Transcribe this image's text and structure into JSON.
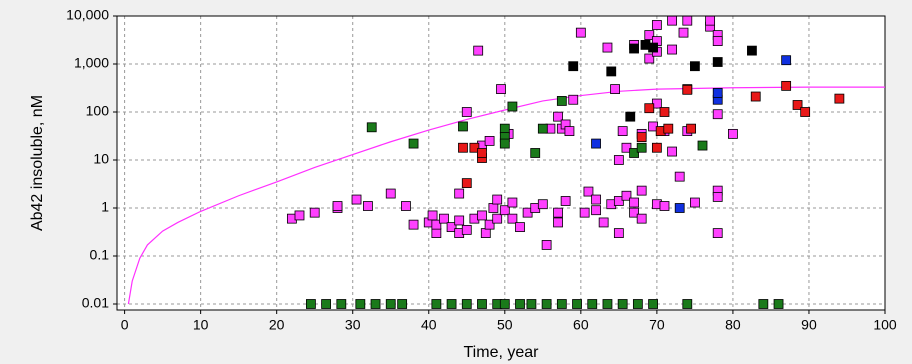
{
  "chart_data": {
    "type": "scatter",
    "x_label": "Time, year",
    "y_label": "Ab42 insoluble, nM",
    "xlim": [
      -1,
      100
    ],
    "xticks": [
      0,
      10,
      20,
      30,
      40,
      50,
      60,
      70,
      80,
      90,
      100
    ],
    "ylim": [
      0.0075,
      10000
    ],
    "ylog": true,
    "yticks": [
      0.01,
      0.1,
      1,
      10,
      100,
      {
        "value": 1000,
        "label": "1,000"
      },
      {
        "value": 10000,
        "label": "10,000"
      }
    ],
    "grid": true,
    "series": [
      {
        "type": "line",
        "color": "#ff30ff",
        "x": [
          0.5,
          1,
          2,
          3,
          5,
          7,
          10,
          15,
          20,
          25,
          30,
          35,
          40,
          45,
          50,
          55,
          60,
          65,
          70,
          80,
          90,
          100
        ],
        "values": [
          0.01,
          0.03,
          0.09,
          0.17,
          0.33,
          0.5,
          0.85,
          1.8,
          3.5,
          7,
          13,
          24,
          42,
          70,
          110,
          170,
          220,
          270,
          300,
          320,
          330,
          330
        ]
      },
      {
        "type": "scatter",
        "color": "#ff40ff",
        "x": [
          22,
          23,
          25,
          28,
          28,
          30.5,
          32,
          35,
          37,
          38,
          40,
          40.5,
          41,
          41,
          42,
          43,
          44,
          44,
          44,
          45,
          45,
          46,
          46.5,
          47,
          47,
          47.5,
          48,
          48,
          48.5,
          49,
          49,
          49.5,
          50,
          50.5,
          51,
          51,
          52,
          53,
          54,
          55,
          55.5,
          56,
          57,
          57,
          57,
          57.5,
          58,
          58,
          58.5,
          59,
          60,
          60.5,
          61,
          62,
          62,
          63,
          63.5,
          64,
          64.5,
          65,
          65,
          65,
          65.5,
          66,
          66,
          67,
          67,
          67,
          68,
          68,
          68,
          69,
          69,
          69.5,
          70,
          70,
          70,
          70,
          70,
          71,
          71,
          72,
          72,
          72,
          73,
          73.5,
          74,
          74,
          74,
          75,
          77,
          77,
          78,
          78,
          78,
          78,
          78,
          78,
          80
        ],
        "values": [
          0.6,
          0.7,
          0.8,
          1.0,
          1.1,
          1.5,
          1.1,
          2,
          1.1,
          0.45,
          0.5,
          0.7,
          0.3,
          0.45,
          0.6,
          0.4,
          0.3,
          0.55,
          2,
          100,
          0.35,
          0.6,
          1900,
          20,
          0.7,
          0.3,
          25,
          0.45,
          1,
          0.6,
          1.5,
          300,
          0.9,
          35,
          0.6,
          1.3,
          0.4,
          0.8,
          1,
          1.2,
          0.17,
          45,
          80,
          0.8,
          0.5,
          45,
          55,
          1.4,
          40,
          180,
          4500,
          0.8,
          2.2,
          1.5,
          0.9,
          0.5,
          2200,
          1.2,
          300,
          10,
          1.4,
          0.3,
          40,
          18,
          1.8,
          2500,
          1.3,
          0.8,
          35,
          2.3,
          0.6,
          1300,
          4000,
          50,
          6500,
          3000,
          1800,
          150,
          1.2,
          1.1,
          40,
          8000,
          2000,
          15,
          4.5,
          4500,
          8000,
          40,
          300,
          1.3,
          6000,
          8000,
          4000,
          3000,
          90,
          2.3,
          1.7,
          0.3,
          35
        ]
      },
      {
        "type": "scatter",
        "color": "#1a7a1a",
        "x": [
          24.5,
          26.5,
          28.5,
          31,
          33,
          35,
          36.5,
          41,
          43,
          45,
          47,
          49,
          50,
          52,
          53.5,
          55.5,
          57.5,
          59.5,
          61.5,
          63.5,
          65.5,
          67.5,
          69.5,
          74,
          84,
          86,
          32.5,
          38,
          44.5,
          50,
          50,
          50,
          51,
          54,
          55,
          57.5,
          67,
          68,
          76
        ],
        "values": [
          0.01,
          0.01,
          0.01,
          0.01,
          0.01,
          0.01,
          0.01,
          0.01,
          0.01,
          0.01,
          0.01,
          0.01,
          0.01,
          0.01,
          0.01,
          0.01,
          0.01,
          0.01,
          0.01,
          0.01,
          0.01,
          0.01,
          0.01,
          0.01,
          0.01,
          0.01,
          48,
          22,
          50,
          45,
          30,
          22,
          130,
          14,
          45,
          170,
          14,
          18,
          20
        ]
      },
      {
        "type": "scatter",
        "color": "#e81818",
        "x": [
          44.5,
          45,
          46,
          47,
          47,
          68,
          69,
          70,
          70.5,
          71,
          71.5,
          74,
          74.5,
          83,
          87,
          88.5,
          89.5,
          94
        ],
        "values": [
          18,
          3.3,
          18,
          11,
          14,
          30,
          120,
          18,
          40,
          100,
          45,
          290,
          45,
          210,
          350,
          140,
          100,
          190
        ]
      },
      {
        "type": "scatter",
        "color": "#000000",
        "x": [
          59,
          64,
          66.5,
          67,
          68.5,
          69.5,
          75,
          78,
          82.5
        ],
        "values": [
          900,
          700,
          80,
          2100,
          2500,
          2200,
          900,
          1100,
          1900
        ]
      },
      {
        "type": "scatter",
        "color": "#1030e0",
        "x": [
          62,
          73,
          78,
          78,
          87
        ],
        "values": [
          22,
          1,
          180,
          250,
          1200
        ]
      }
    ]
  }
}
